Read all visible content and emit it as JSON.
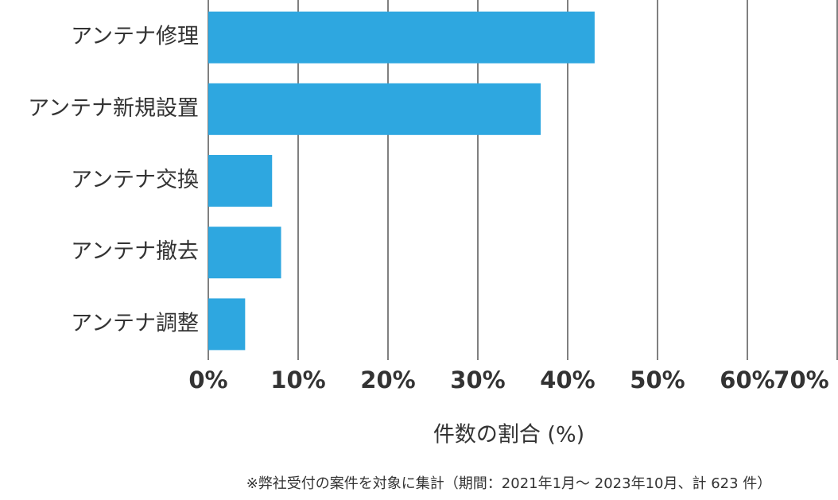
{
  "chart_data": {
    "type": "bar",
    "orientation": "horizontal",
    "categories": [
      "アンテナ修理",
      "アンテナ新規設置",
      "アンテナ交換",
      "アンテナ撤去",
      "アンテナ調整"
    ],
    "values": [
      43.0,
      37.0,
      7.1,
      8.1,
      4.1
    ],
    "color": "#2ea7e0",
    "xlim": [
      0,
      70
    ],
    "xticks": [
      {
        "value": 0,
        "label": "0%"
      },
      {
        "value": 10,
        "label": "10%"
      },
      {
        "value": 20,
        "label": "20%"
      },
      {
        "value": 30,
        "label": "30%"
      },
      {
        "value": 40,
        "label": "40%"
      },
      {
        "value": 50,
        "label": "50%"
      },
      {
        "value": 60,
        "label": "60%"
      },
      {
        "value": 70,
        "label": "70%"
      }
    ],
    "xlabel": "件数の割合 (%)",
    "note": "※弊社受付の案件を対象に集計（期間：2021年1月～ 2023年10月、計 623 件）",
    "grid": true
  }
}
